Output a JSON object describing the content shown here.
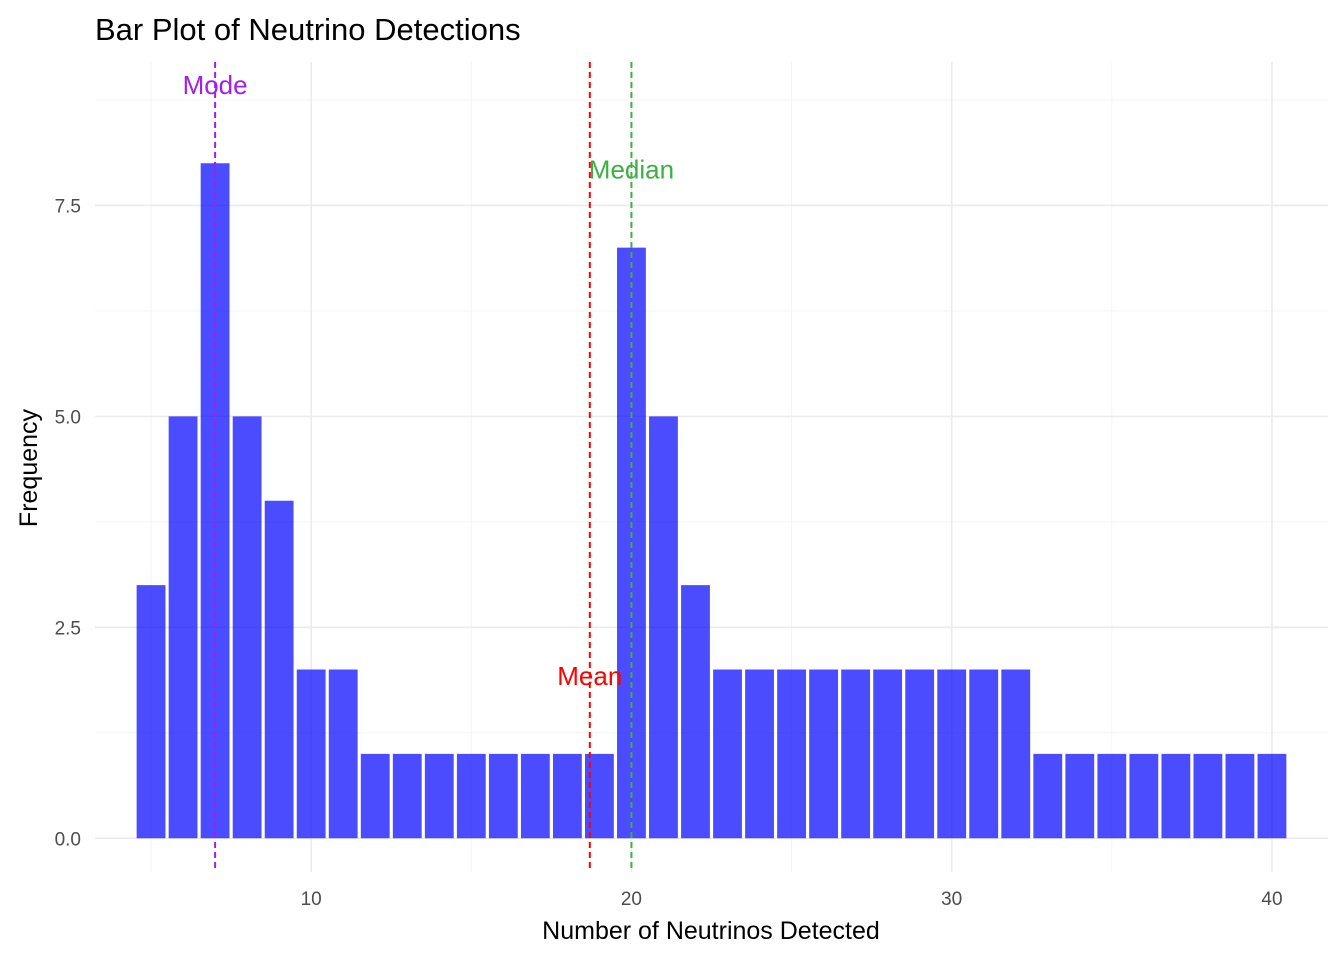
{
  "chart_data": {
    "type": "bar",
    "title": "Bar Plot of Neutrino Detections",
    "xlabel": "Number of Neutrinos Detected",
    "ylabel": "Frequency",
    "x": [
      5,
      6,
      7,
      8,
      9,
      10,
      11,
      12,
      13,
      14,
      15,
      16,
      17,
      18,
      19,
      20,
      21,
      22,
      23,
      24,
      25,
      26,
      27,
      28,
      29,
      30,
      31,
      32,
      33,
      34,
      35,
      36,
      37,
      38,
      39,
      40
    ],
    "values": [
      3,
      5,
      8,
      5,
      4,
      2,
      2,
      1,
      1,
      1,
      1,
      1,
      1,
      1,
      1,
      7,
      5,
      3,
      2,
      2,
      2,
      2,
      2,
      2,
      2,
      2,
      2,
      2,
      1,
      1,
      1,
      1,
      1,
      1,
      1,
      1
    ],
    "xlim": [
      3.25,
      41.75
    ],
    "ylim": [
      -0.4,
      9.2
    ],
    "x_ticks": [
      10,
      20,
      30,
      40
    ],
    "x_tick_labels": [
      "10",
      "20",
      "30",
      "40"
    ],
    "y_ticks": [
      0,
      2.5,
      5,
      7.5
    ],
    "y_tick_labels": [
      "0.0",
      "2.5",
      "5.0",
      "7.5"
    ],
    "bar_color": "#0000ff",
    "bar_opacity": 0.7,
    "grid": true,
    "reference_lines": [
      {
        "label": "Mode",
        "x": 7,
        "label_y": 8.9,
        "color": "#a020f0"
      },
      {
        "label": "Median",
        "x": 20,
        "label_y": 7.9,
        "color": "#3cb043"
      },
      {
        "label": "Mean",
        "x": 18.7,
        "label_y": 1.9,
        "color": "#ff0000"
      }
    ]
  }
}
